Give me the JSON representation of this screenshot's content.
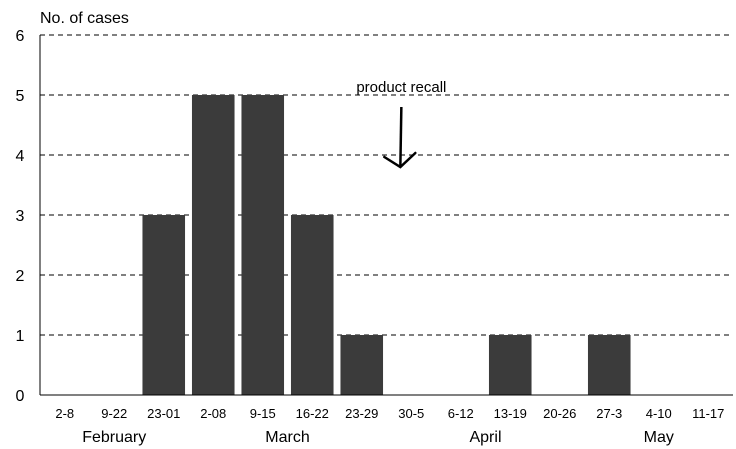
{
  "chart_data": {
    "type": "bar",
    "ylabel": "No. of cases",
    "ylim": [
      0,
      6
    ],
    "yticks": [
      0,
      1,
      2,
      3,
      4,
      5,
      6
    ],
    "grid": "dashed horizontal",
    "categories": [
      "2-8",
      "9-22",
      "23-01",
      "2-08",
      "9-15",
      "16-22",
      "23-29",
      "30-5",
      "6-12",
      "13-19",
      "20-26",
      "27-3",
      "4-10",
      "11-17"
    ],
    "values": [
      0,
      0,
      3,
      5,
      5,
      3,
      1,
      0,
      0,
      1,
      0,
      1,
      0,
      0
    ],
    "months": [
      {
        "label": "February",
        "start": 0,
        "end": 2
      },
      {
        "label": "March",
        "start": 3,
        "end": 6
      },
      {
        "label": "April",
        "start": 7,
        "end": 10
      },
      {
        "label": "May",
        "start": 11,
        "end": 13
      }
    ],
    "annotation": {
      "text": "product recall",
      "category_index": 6.8,
      "arrow_from": 4.8,
      "arrow_to": 3.8
    },
    "colors": {
      "bar": "#3b3b3b",
      "grid": "#000000"
    }
  }
}
